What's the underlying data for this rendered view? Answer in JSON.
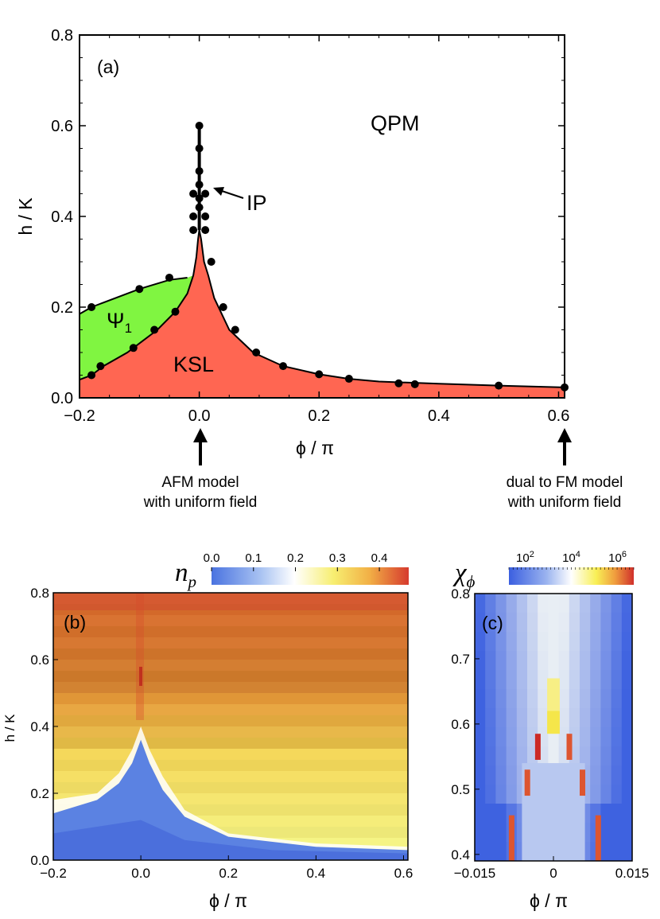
{
  "chart_data": [
    {
      "type": "line",
      "panel": "(a)",
      "xlabel": "ϕ / π",
      "ylabel": "h / K",
      "xlim": [
        -0.2,
        0.61
      ],
      "ylim": [
        0.0,
        0.8
      ],
      "xticks": [
        "−0.2",
        "0.0",
        "0.2",
        "0.4",
        "0.6"
      ],
      "yticks": [
        "0.0",
        "0.2",
        "0.4",
        "0.6",
        "0.8"
      ],
      "regions": {
        "qpm": "QPM",
        "ksl": "KSL",
        "psi_main": "Ψ",
        "psi_sub": "1",
        "ip": "IP"
      },
      "colors": {
        "ksl": "#ff6652",
        "psi1": "#80f541"
      },
      "series": [
        {
          "values_xy": [
            [
              -0.2,
              0.04
            ],
            [
              -0.18,
              0.05
            ],
            [
              -0.16,
              0.07
            ],
            [
              -0.12,
              0.1
            ],
            [
              -0.1,
              0.12
            ],
            [
              -0.07,
              0.15
            ],
            [
              -0.04,
              0.19
            ],
            [
              -0.02,
              0.23
            ],
            [
              -0.01,
              0.27
            ],
            [
              -0.005,
              0.31
            ],
            [
              -0.002,
              0.35
            ],
            [
              0.0,
              0.37
            ]
          ]
        },
        {
          "values_xy": [
            [
              0.0,
              0.37
            ],
            [
              0.003,
              0.35
            ],
            [
              0.008,
              0.3
            ],
            [
              0.015,
              0.27
            ],
            [
              0.025,
              0.22
            ],
            [
              0.05,
              0.15
            ],
            [
              0.09,
              0.1
            ],
            [
              0.14,
              0.07
            ],
            [
              0.2,
              0.052
            ],
            [
              0.25,
              0.042
            ],
            [
              0.3,
              0.036
            ],
            [
              0.4,
              0.031
            ],
            [
              0.5,
              0.027
            ],
            [
              0.61,
              0.023
            ]
          ]
        },
        {
          "values_xy": [
            [
              -0.2,
              0.185
            ],
            [
              -0.18,
              0.2
            ],
            [
              -0.1,
              0.24
            ],
            [
              -0.05,
              0.26
            ],
            [
              -0.02,
              0.265
            ]
          ]
        }
      ],
      "points": [
        [
          -0.18,
          0.05
        ],
        [
          -0.165,
          0.07
        ],
        [
          -0.11,
          0.11
        ],
        [
          -0.075,
          0.15
        ],
        [
          -0.04,
          0.19
        ],
        [
          -0.18,
          0.2
        ],
        [
          -0.1,
          0.24
        ],
        [
          -0.05,
          0.265
        ],
        [
          0.0,
          0.6
        ],
        [
          0.0,
          0.55
        ],
        [
          0.0,
          0.5
        ],
        [
          0.0,
          0.47
        ],
        [
          0.0,
          0.44
        ],
        [
          0.0,
          0.42
        ],
        [
          -0.01,
          0.4
        ],
        [
          0.01,
          0.4
        ],
        [
          -0.01,
          0.37
        ],
        [
          0.01,
          0.37
        ],
        [
          -0.01,
          0.45
        ],
        [
          0.01,
          0.45
        ],
        [
          0.02,
          0.3
        ],
        [
          0.04,
          0.2
        ],
        [
          0.06,
          0.15
        ],
        [
          0.095,
          0.1
        ],
        [
          0.14,
          0.07
        ],
        [
          0.2,
          0.052
        ],
        [
          0.25,
          0.042
        ],
        [
          0.333,
          0.032
        ],
        [
          0.36,
          0.03
        ],
        [
          0.5,
          0.027
        ],
        [
          0.61,
          0.023
        ]
      ],
      "annotations": [
        {
          "text": "AFM model",
          "text2": "with uniform field",
          "at_x": 0.0
        },
        {
          "text": "dual to FM model",
          "text2": "with uniform field",
          "at_x": 0.61
        }
      ]
    },
    {
      "type": "heatmap",
      "panel": "(b)",
      "xlabel": "ϕ / π",
      "ylabel": "h / K",
      "xlim": [
        -0.2,
        0.61
      ],
      "ylim": [
        0.0,
        0.8
      ],
      "xticks": [
        "−0.2",
        "0.0",
        "0.2",
        "0.4",
        "0.6"
      ],
      "yticks": [
        "0.0",
        "0.2",
        "0.4",
        "0.6",
        "0.8"
      ],
      "colorbar_label": "n",
      "colorbar_sub": "p",
      "colorbar_ticks": [
        "0.0",
        "0.1",
        "0.2",
        "0.3",
        "0.4"
      ],
      "colorbar_range": [
        0.0,
        0.47
      ]
    },
    {
      "type": "heatmap",
      "panel": "(c)",
      "xlabel": "ϕ / π",
      "xlim": [
        -0.015,
        0.015
      ],
      "ylim": [
        0.39,
        0.8
      ],
      "xticks": [
        "−0.015",
        "0",
        "0.015"
      ],
      "yticks": [
        "0.4",
        "0.5",
        "0.6",
        "0.7",
        "0.8"
      ],
      "colorbar_label": "χ",
      "colorbar_sub": "ϕ",
      "colorbar_ticks": [
        {
          "base": "10",
          "exp": "2"
        },
        {
          "base": "10",
          "exp": "4"
        },
        {
          "base": "10",
          "exp": "6"
        }
      ],
      "colorbar_scale": "log"
    }
  ]
}
